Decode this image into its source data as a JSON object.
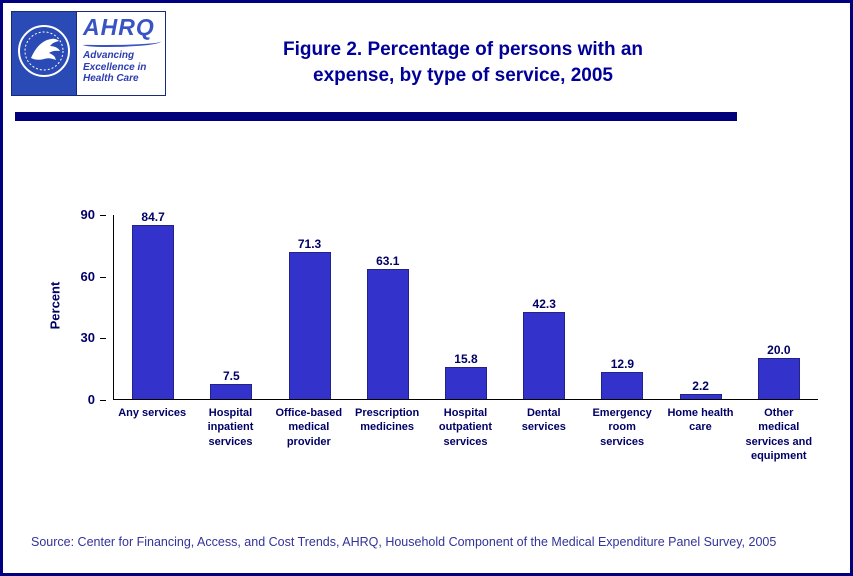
{
  "page": {
    "title_line1": "Figure 2. Percentage of persons with an",
    "title_line2": "expense, by type of service, 2005",
    "source": "Source: Center for Financing, Access, and Cost Trends, AHRQ, Household Component of the Medical Expenditure Panel Survey, 2005"
  },
  "logos": {
    "ahrq_acronym": "AHRQ",
    "ahrq_tagline": "Advancing\nExcellence in\nHealth Care"
  },
  "colors": {
    "accent_navy": "#000080",
    "title_blue": "#000099",
    "bar_blue": "#3333cc",
    "axis_text": "#000066"
  },
  "chart_data": {
    "type": "bar",
    "title": "Figure 2. Percentage of persons with an expense, by type of service, 2005",
    "categories": [
      "Any services",
      "Hospital\ninpatient\nservices",
      "Office-based\nmedical\nprovider",
      "Prescription\nmedicines",
      "Hospital\noutpatient\nservices",
      "Dental\nservices",
      "Emergency\nroom\nservices",
      "Home health\ncare",
      "Other\nmedical\nservices and\nequipment"
    ],
    "values": [
      84.7,
      7.5,
      71.3,
      63.1,
      15.8,
      42.3,
      12.9,
      2.2,
      20.0
    ],
    "xlabel": "",
    "ylabel": "Percent",
    "yticks": [
      0,
      30,
      60,
      90
    ],
    "ylim": [
      0,
      90
    ],
    "bar_color": "#3333cc",
    "grid": false,
    "legend": false,
    "value_labels_shown": true
  }
}
